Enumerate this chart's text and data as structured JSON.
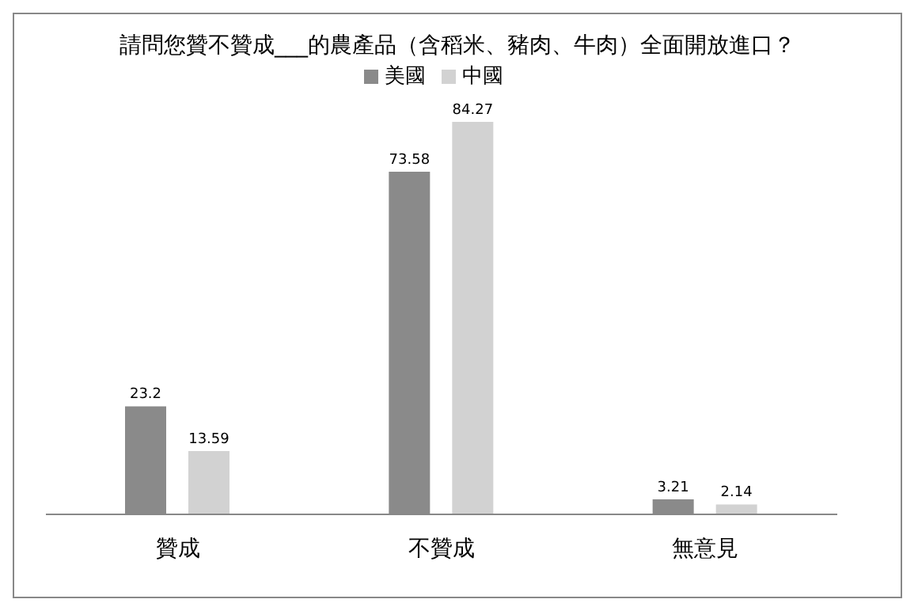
{
  "chart_data": {
    "type": "bar",
    "title": "請問您贊不贊成___的農產品（含稻米、豬肉、牛肉）全面開放進口？",
    "categories": [
      "贊成",
      "不贊成",
      "無意見"
    ],
    "series": [
      {
        "name": "美國",
        "color": "#8a8a8a",
        "values": [
          23.2,
          73.58,
          3.21
        ]
      },
      {
        "name": "中國",
        "color": "#d2d2d2",
        "values": [
          13.59,
          84.27,
          2.14
        ]
      }
    ],
    "data_labels": true,
    "legend": "top"
  }
}
